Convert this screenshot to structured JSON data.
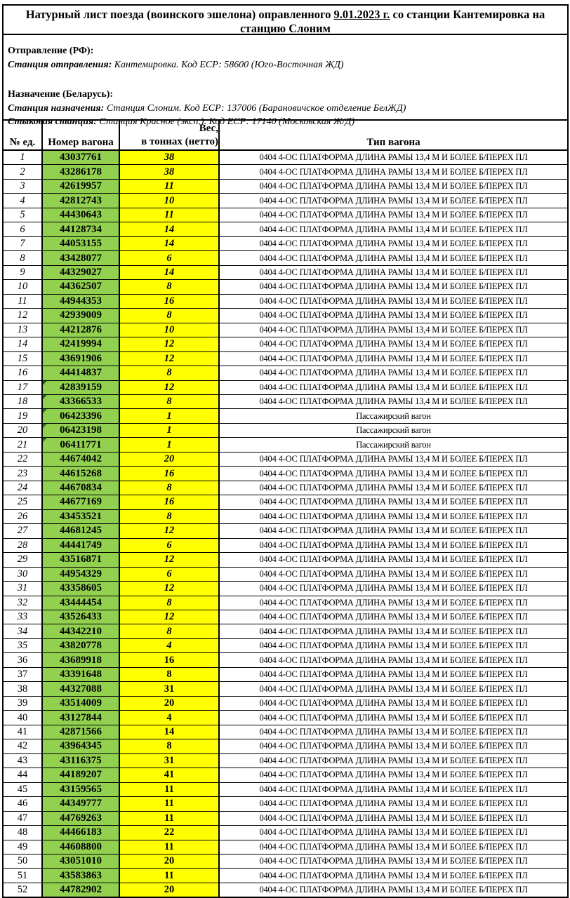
{
  "title": {
    "prefix": "Натурный лист поезда (воинского эшелона) оправленного ",
    "date_underlined": "9.01.2023 г.",
    "suffix": " со станции Кантемировка  на станцию Слоним"
  },
  "info": {
    "departure_heading": "Отправление (РФ):",
    "departure_station_label": "Станция отправления:",
    "departure_station_value": "Кантемировка. Код ЕСР: 58600 (Юго-Восточная ЖД)",
    "destination_heading": "Назначение (Беларусь):",
    "destination_station_label": "Станция назначения:",
    "destination_station_value": "Станция Слоним. Код ЕСР: 137006 (Барановичское отделение БелЖД)",
    "junction_station_label": "Стыковая станция:",
    "junction_station_value": "Станция Красное (эксп.). Код ЕСР: 17140 (Московская Ж/Д)"
  },
  "table": {
    "headers": {
      "num": "№ ед.",
      "wagon": "Номер вагона",
      "weight_line1": "Вес,",
      "weight_line2": "в тоннах (нетто)",
      "type": "Тип вагона"
    },
    "colors": {
      "wagon_cell_bg": "#92d050",
      "weight_cell_bg": "#ffff00",
      "border": "#000000"
    },
    "platform_type": "0404 4-ОС ПЛАТФОРМА ДЛИНА РАМЫ 13,4 М И БОЛЕЕ Б/ПЕРЕХ ПЛ",
    "passenger_type": "Пассажирский вагон",
    "corner_mark_rows": [
      17,
      18,
      19,
      20,
      21
    ],
    "rows": [
      {
        "n": 1,
        "wagon": "43037761",
        "weight": "38",
        "type": "0404 4-ОС ПЛАТФОРМА ДЛИНА РАМЫ 13,4 М И БОЛЕЕ Б/ПЕРЕХ ПЛ"
      },
      {
        "n": 2,
        "wagon": "43286178",
        "weight": "38",
        "type": "0404 4-ОС ПЛАТФОРМА ДЛИНА РАМЫ 13,4 М И БОЛЕЕ Б/ПЕРЕХ ПЛ"
      },
      {
        "n": 3,
        "wagon": "42619957",
        "weight": "11",
        "type": "0404 4-ОС ПЛАТФОРМА ДЛИНА РАМЫ 13,4 М И БОЛЕЕ Б/ПЕРЕХ ПЛ"
      },
      {
        "n": 4,
        "wagon": "42812743",
        "weight": "10",
        "type": "0404 4-ОС ПЛАТФОРМА ДЛИНА РАМЫ 13,4 М И БОЛЕЕ Б/ПЕРЕХ ПЛ"
      },
      {
        "n": 5,
        "wagon": "44430643",
        "weight": "11",
        "type": "0404 4-ОС ПЛАТФОРМА ДЛИНА РАМЫ 13,4 М И БОЛЕЕ Б/ПЕРЕХ ПЛ"
      },
      {
        "n": 6,
        "wagon": "44128734",
        "weight": "14",
        "type": "0404 4-ОС ПЛАТФОРМА ДЛИНА РАМЫ 13,4 М И БОЛЕЕ Б/ПЕРЕХ ПЛ"
      },
      {
        "n": 7,
        "wagon": "44053155",
        "weight": "14",
        "type": "0404 4-ОС ПЛАТФОРМА ДЛИНА РАМЫ 13,4 М И БОЛЕЕ Б/ПЕРЕХ ПЛ"
      },
      {
        "n": 8,
        "wagon": "43428077",
        "weight": "6",
        "type": "0404 4-ОС ПЛАТФОРМА ДЛИНА РАМЫ 13,4 М И БОЛЕЕ Б/ПЕРЕХ ПЛ"
      },
      {
        "n": 9,
        "wagon": "44329027",
        "weight": "14",
        "type": "0404 4-ОС ПЛАТФОРМА ДЛИНА РАМЫ 13,4 М И БОЛЕЕ Б/ПЕРЕХ ПЛ"
      },
      {
        "n": 10,
        "wagon": "44362507",
        "weight": "8",
        "type": "0404 4-ОС ПЛАТФОРМА ДЛИНА РАМЫ 13,4 М И БОЛЕЕ Б/ПЕРЕХ ПЛ"
      },
      {
        "n": 11,
        "wagon": "44944353",
        "weight": "16",
        "type": "0404 4-ОС ПЛАТФОРМА ДЛИНА РАМЫ 13,4 М И БОЛЕЕ Б/ПЕРЕХ ПЛ"
      },
      {
        "n": 12,
        "wagon": "42939009",
        "weight": "8",
        "type": "0404 4-ОС ПЛАТФОРМА ДЛИНА РАМЫ 13,4 М И БОЛЕЕ Б/ПЕРЕХ ПЛ"
      },
      {
        "n": 13,
        "wagon": "44212876",
        "weight": "10",
        "type": "0404 4-ОС ПЛАТФОРМА ДЛИНА РАМЫ 13,4 М И БОЛЕЕ Б/ПЕРЕХ ПЛ"
      },
      {
        "n": 14,
        "wagon": "42419994",
        "weight": "12",
        "type": "0404 4-ОС ПЛАТФОРМА ДЛИНА РАМЫ 13,4 М И БОЛЕЕ Б/ПЕРЕХ ПЛ"
      },
      {
        "n": 15,
        "wagon": "43691906",
        "weight": "12",
        "type": "0404 4-ОС ПЛАТФОРМА ДЛИНА РАМЫ 13,4 М И БОЛЕЕ Б/ПЕРЕХ ПЛ"
      },
      {
        "n": 16,
        "wagon": "44414837",
        "weight": "8",
        "type": "0404 4-ОС ПЛАТФОРМА ДЛИНА РАМЫ 13,4 М И БОЛЕЕ Б/ПЕРЕХ ПЛ"
      },
      {
        "n": 17,
        "wagon": "42839159",
        "weight": "12",
        "type": "0404 4-ОС ПЛАТФОРМА ДЛИНА РАМЫ 13,4 М И БОЛЕЕ Б/ПЕРЕХ ПЛ"
      },
      {
        "n": 18,
        "wagon": "43366533",
        "weight": "8",
        "type": "0404 4-ОС ПЛАТФОРМА ДЛИНА РАМЫ 13,4 М И БОЛЕЕ Б/ПЕРЕХ ПЛ"
      },
      {
        "n": 19,
        "wagon": "06423396",
        "weight": "1",
        "type": "Пассажирский вагон"
      },
      {
        "n": 20,
        "wagon": "06423198",
        "weight": "1",
        "type": "Пассажирский вагон"
      },
      {
        "n": 21,
        "wagon": "06411771",
        "weight": "1",
        "type": "Пассажирский вагон"
      },
      {
        "n": 22,
        "wagon": "44674042",
        "weight": "20",
        "type": "0404 4-ОС ПЛАТФОРМА ДЛИНА РАМЫ 13,4 М И БОЛЕЕ Б/ПЕРЕХ ПЛ"
      },
      {
        "n": 23,
        "wagon": "44615268",
        "weight": "16",
        "type": "0404 4-ОС ПЛАТФОРМА ДЛИНА РАМЫ 13,4 М И БОЛЕЕ Б/ПЕРЕХ ПЛ"
      },
      {
        "n": 24,
        "wagon": "44670834",
        "weight": "8",
        "type": "0404 4-ОС ПЛАТФОРМА ДЛИНА РАМЫ 13,4 М И БОЛЕЕ Б/ПЕРЕХ ПЛ"
      },
      {
        "n": 25,
        "wagon": "44677169",
        "weight": "16",
        "type": "0404 4-ОС ПЛАТФОРМА ДЛИНА РАМЫ 13,4 М И БОЛЕЕ Б/ПЕРЕХ ПЛ"
      },
      {
        "n": 26,
        "wagon": "43453521",
        "weight": "8",
        "type": "0404 4-ОС ПЛАТФОРМА ДЛИНА РАМЫ 13,4 М И БОЛЕЕ Б/ПЕРЕХ ПЛ"
      },
      {
        "n": 27,
        "wagon": "44681245",
        "weight": "12",
        "type": "0404 4-ОС ПЛАТФОРМА ДЛИНА РАМЫ 13,4 М И БОЛЕЕ Б/ПЕРЕХ ПЛ"
      },
      {
        "n": 28,
        "wagon": "44441749",
        "weight": "6",
        "type": "0404 4-ОС ПЛАТФОРМА ДЛИНА РАМЫ 13,4 М И БОЛЕЕ Б/ПЕРЕХ ПЛ"
      },
      {
        "n": 29,
        "wagon": "43516871",
        "weight": "12",
        "type": "0404 4-ОС ПЛАТФОРМА ДЛИНА РАМЫ 13,4 М И БОЛЕЕ Б/ПЕРЕХ ПЛ"
      },
      {
        "n": 30,
        "wagon": "44954329",
        "weight": "6",
        "type": "0404 4-ОС ПЛАТФОРМА ДЛИНА РАМЫ 13,4 М И БОЛЕЕ Б/ПЕРЕХ ПЛ"
      },
      {
        "n": 31,
        "wagon": "43358605",
        "weight": "12",
        "type": "0404 4-ОС ПЛАТФОРМА ДЛИНА РАМЫ 13,4 М И БОЛЕЕ Б/ПЕРЕХ ПЛ"
      },
      {
        "n": 32,
        "wagon": "43444454",
        "weight": "8",
        "type": "0404 4-ОС ПЛАТФОРМА ДЛИНА РАМЫ 13,4 М И БОЛЕЕ Б/ПЕРЕХ ПЛ"
      },
      {
        "n": 33,
        "wagon": "43526433",
        "weight": "12",
        "type": "0404 4-ОС ПЛАТФОРМА ДЛИНА РАМЫ 13,4 М И БОЛЕЕ Б/ПЕРЕХ ПЛ"
      },
      {
        "n": 34,
        "wagon": "44342210",
        "weight": "8",
        "type": "0404 4-ОС ПЛАТФОРМА ДЛИНА РАМЫ 13,4 М И БОЛЕЕ Б/ПЕРЕХ ПЛ"
      },
      {
        "n": 35,
        "wagon": "43820778",
        "weight": "4",
        "type": "0404 4-ОС ПЛАТФОРМА ДЛИНА РАМЫ 13,4 М И БОЛЕЕ Б/ПЕРЕХ ПЛ"
      },
      {
        "n": 36,
        "wagon": "43689918",
        "weight": "16",
        "type": "0404 4-ОС ПЛАТФОРМА ДЛИНА РАМЫ 13,4 М И БОЛЕЕ Б/ПЕРЕХ ПЛ"
      },
      {
        "n": 37,
        "wagon": "43391648",
        "weight": "8",
        "type": "0404 4-ОС ПЛАТФОРМА ДЛИНА РАМЫ 13,4 М И БОЛЕЕ Б/ПЕРЕХ ПЛ"
      },
      {
        "n": 38,
        "wagon": "44327088",
        "weight": "31",
        "type": "0404 4-ОС ПЛАТФОРМА ДЛИНА РАМЫ 13,4 М И БОЛЕЕ Б/ПЕРЕХ ПЛ"
      },
      {
        "n": 39,
        "wagon": "43514009",
        "weight": "20",
        "type": "0404 4-ОС ПЛАТФОРМА ДЛИНА РАМЫ 13,4 М И БОЛЕЕ Б/ПЕРЕХ ПЛ"
      },
      {
        "n": 40,
        "wagon": "43127844",
        "weight": "4",
        "type": "0404 4-ОС ПЛАТФОРМА ДЛИНА РАМЫ 13,4 М И БОЛЕЕ Б/ПЕРЕХ ПЛ"
      },
      {
        "n": 41,
        "wagon": "42871566",
        "weight": "14",
        "type": "0404 4-ОС ПЛАТФОРМА ДЛИНА РАМЫ 13,4 М И БОЛЕЕ Б/ПЕРЕХ ПЛ"
      },
      {
        "n": 42,
        "wagon": "43964345",
        "weight": "8",
        "type": "0404 4-ОС ПЛАТФОРМА ДЛИНА РАМЫ 13,4 М И БОЛЕЕ Б/ПЕРЕХ ПЛ"
      },
      {
        "n": 43,
        "wagon": "43116375",
        "weight": "31",
        "type": "0404 4-ОС ПЛАТФОРМА ДЛИНА РАМЫ 13,4 М И БОЛЕЕ Б/ПЕРЕХ ПЛ"
      },
      {
        "n": 44,
        "wagon": "44189207",
        "weight": "41",
        "type": "0404 4-ОС ПЛАТФОРМА ДЛИНА РАМЫ 13,4 М И БОЛЕЕ Б/ПЕРЕХ ПЛ"
      },
      {
        "n": 45,
        "wagon": "43159565",
        "weight": "11",
        "type": "0404 4-ОС ПЛАТФОРМА ДЛИНА РАМЫ 13,4 М И БОЛЕЕ Б/ПЕРЕХ ПЛ"
      },
      {
        "n": 46,
        "wagon": "44349777",
        "weight": "11",
        "type": "0404 4-ОС ПЛАТФОРМА ДЛИНА РАМЫ 13,4 М И БОЛЕЕ Б/ПЕРЕХ ПЛ"
      },
      {
        "n": 47,
        "wagon": "44769263",
        "weight": "11",
        "type": "0404 4-ОС ПЛАТФОРМА ДЛИНА РАМЫ 13,4 М И БОЛЕЕ Б/ПЕРЕХ ПЛ"
      },
      {
        "n": 48,
        "wagon": "44466183",
        "weight": "22",
        "type": "0404 4-ОС ПЛАТФОРМА ДЛИНА РАМЫ 13,4 М И БОЛЕЕ Б/ПЕРЕХ ПЛ"
      },
      {
        "n": 49,
        "wagon": "44608800",
        "weight": "11",
        "type": "0404 4-ОС ПЛАТФОРМА ДЛИНА РАМЫ 13,4 М И БОЛЕЕ Б/ПЕРЕХ ПЛ"
      },
      {
        "n": 50,
        "wagon": "43051010",
        "weight": "20",
        "type": "0404 4-ОС ПЛАТФОРМА ДЛИНА РАМЫ 13,4 М И БОЛЕЕ Б/ПЕРЕХ ПЛ"
      },
      {
        "n": 51,
        "wagon": "43583863",
        "weight": "11",
        "type": "0404 4-ОС ПЛАТФОРМА ДЛИНА РАМЫ 13,4 М И БОЛЕЕ Б/ПЕРЕХ ПЛ"
      },
      {
        "n": 52,
        "wagon": "44782902",
        "weight": "20",
        "type": "0404 4-ОС ПЛАТФОРМА ДЛИНА РАМЫ 13,4 М И БОЛЕЕ Б/ПЕРЕХ ПЛ"
      }
    ]
  }
}
